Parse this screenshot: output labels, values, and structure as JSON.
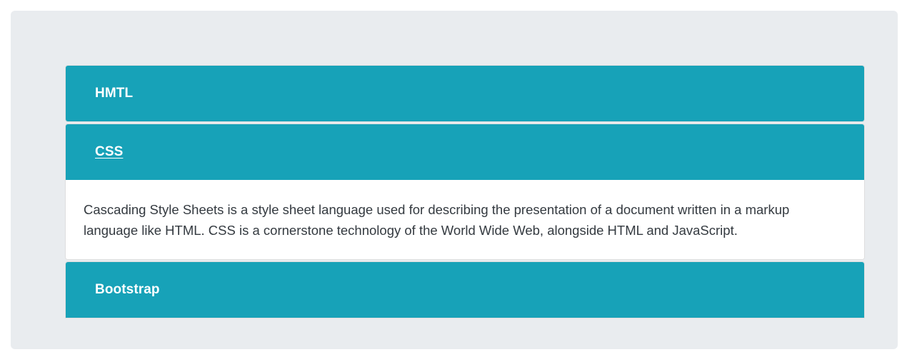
{
  "accordion": {
    "items": [
      {
        "title": "HMTL",
        "expanded": false
      },
      {
        "title": "CSS",
        "expanded": true,
        "body": "Cascading Style Sheets is a style sheet language used for describing the presentation of a document written in a markup language like HTML. CSS is a cornerstone technology of the World Wide Web, alongside HTML and JavaScript."
      },
      {
        "title": "Bootstrap",
        "expanded": false
      }
    ]
  },
  "colors": {
    "header_bg": "#17a2b8",
    "header_text": "#ffffff",
    "container_bg": "#e9ecef",
    "body_text": "#343a40"
  }
}
